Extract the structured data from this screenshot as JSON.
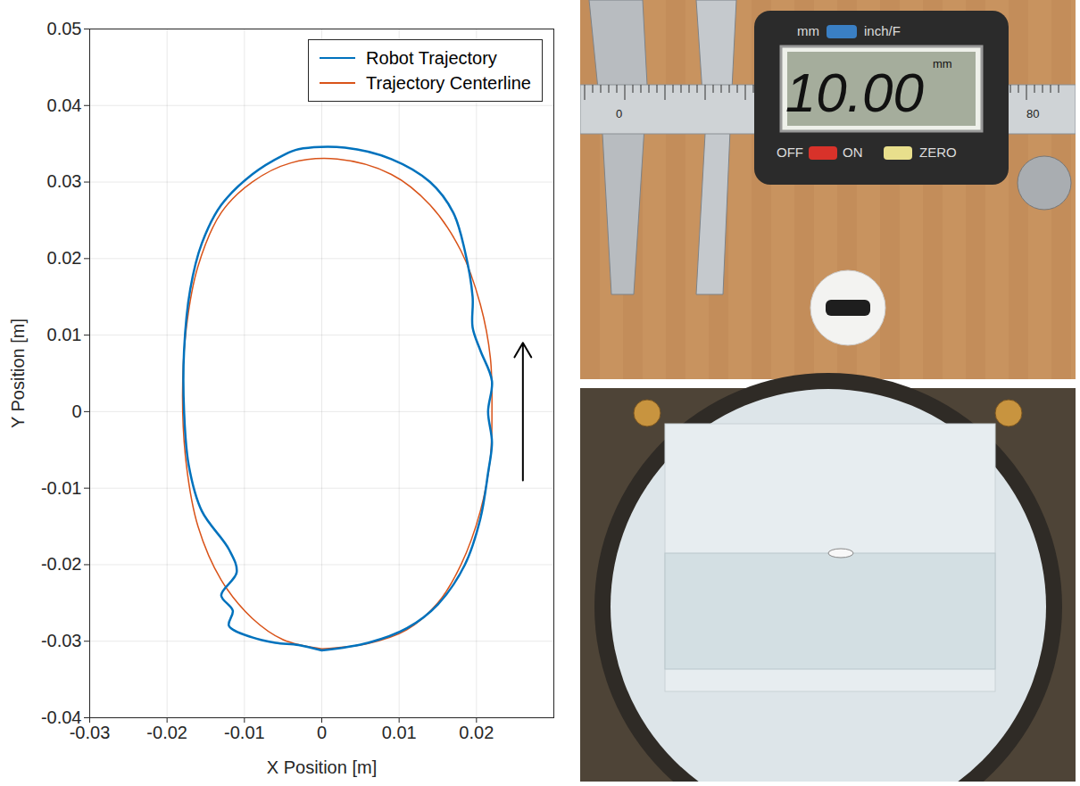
{
  "chart_data": {
    "type": "line",
    "xlabel": "X Position [m]",
    "ylabel": "Y Position [m]",
    "xlim": [
      -0.03,
      0.03
    ],
    "xticks": [
      -0.03,
      -0.02,
      -0.01,
      0,
      0.01,
      0.02
    ],
    "ylim": [
      -0.04,
      0.05
    ],
    "yticks": [
      -0.04,
      -0.03,
      -0.02,
      -0.01,
      0,
      0.01,
      0.02,
      0.03,
      0.04,
      0.05
    ],
    "grid": true,
    "legend": "top-right",
    "annotations": [
      {
        "type": "arrow",
        "x": 0.026,
        "y": [
          -0.009,
          0.009
        ]
      }
    ],
    "series": [
      {
        "name": "Robot Trajectory",
        "color": "#0072bd",
        "x": [
          0,
          0.006,
          0.011,
          0.015,
          0.0185,
          0.0205,
          0.0215,
          0.022,
          0.0215,
          0.022,
          0.0205,
          0.0195,
          0.0195,
          0.0185,
          0.017,
          0.014,
          0.009,
          0.003,
          -0.003,
          -0.005,
          -0.009,
          -0.013,
          -0.0155,
          -0.017,
          -0.0178,
          -0.0178,
          -0.0172,
          -0.0155,
          -0.012,
          -0.011,
          -0.013,
          -0.0115,
          -0.012,
          -0.009,
          -0.006,
          -0.003,
          0
        ],
        "values": [
          -0.0312,
          -0.0302,
          -0.0283,
          -0.0252,
          -0.02,
          -0.014,
          -0.008,
          -0.004,
          0.0,
          0.004,
          0.008,
          0.011,
          0.015,
          0.021,
          0.026,
          0.03,
          0.033,
          0.0345,
          0.0343,
          0.0335,
          0.031,
          0.027,
          0.022,
          0.016,
          0.008,
          0.0,
          -0.007,
          -0.013,
          -0.018,
          -0.021,
          -0.024,
          -0.026,
          -0.028,
          -0.0295,
          -0.0302,
          -0.0305,
          -0.0312
        ]
      },
      {
        "name": "Trajectory Centerline",
        "color": "#d95319",
        "x": [
          0,
          0.006,
          0.011,
          0.015,
          0.018,
          0.0205,
          0.0218,
          0.022,
          0.0218,
          0.0205,
          0.018,
          0.014,
          0.009,
          0.002,
          -0.004,
          -0.009,
          -0.013,
          -0.016,
          -0.0175,
          -0.018,
          -0.0175,
          -0.016,
          -0.013,
          -0.009,
          -0.005,
          0
        ],
        "values": [
          -0.031,
          -0.0303,
          -0.0285,
          -0.025,
          -0.02,
          -0.013,
          -0.006,
          0.0,
          0.007,
          0.014,
          0.021,
          0.027,
          0.031,
          0.033,
          0.0325,
          0.03,
          0.026,
          0.019,
          0.011,
          0.002,
          -0.007,
          -0.015,
          -0.022,
          -0.027,
          -0.0298,
          -0.031
        ]
      }
    ]
  },
  "photos": {
    "caliper": {
      "display": "10.00",
      "display_unit": "mm",
      "unit_button": [
        "mm",
        "inch/F"
      ],
      "buttons": [
        "OFF",
        "ON",
        "ZERO"
      ],
      "scale_labels": [
        "0",
        "80"
      ]
    }
  }
}
